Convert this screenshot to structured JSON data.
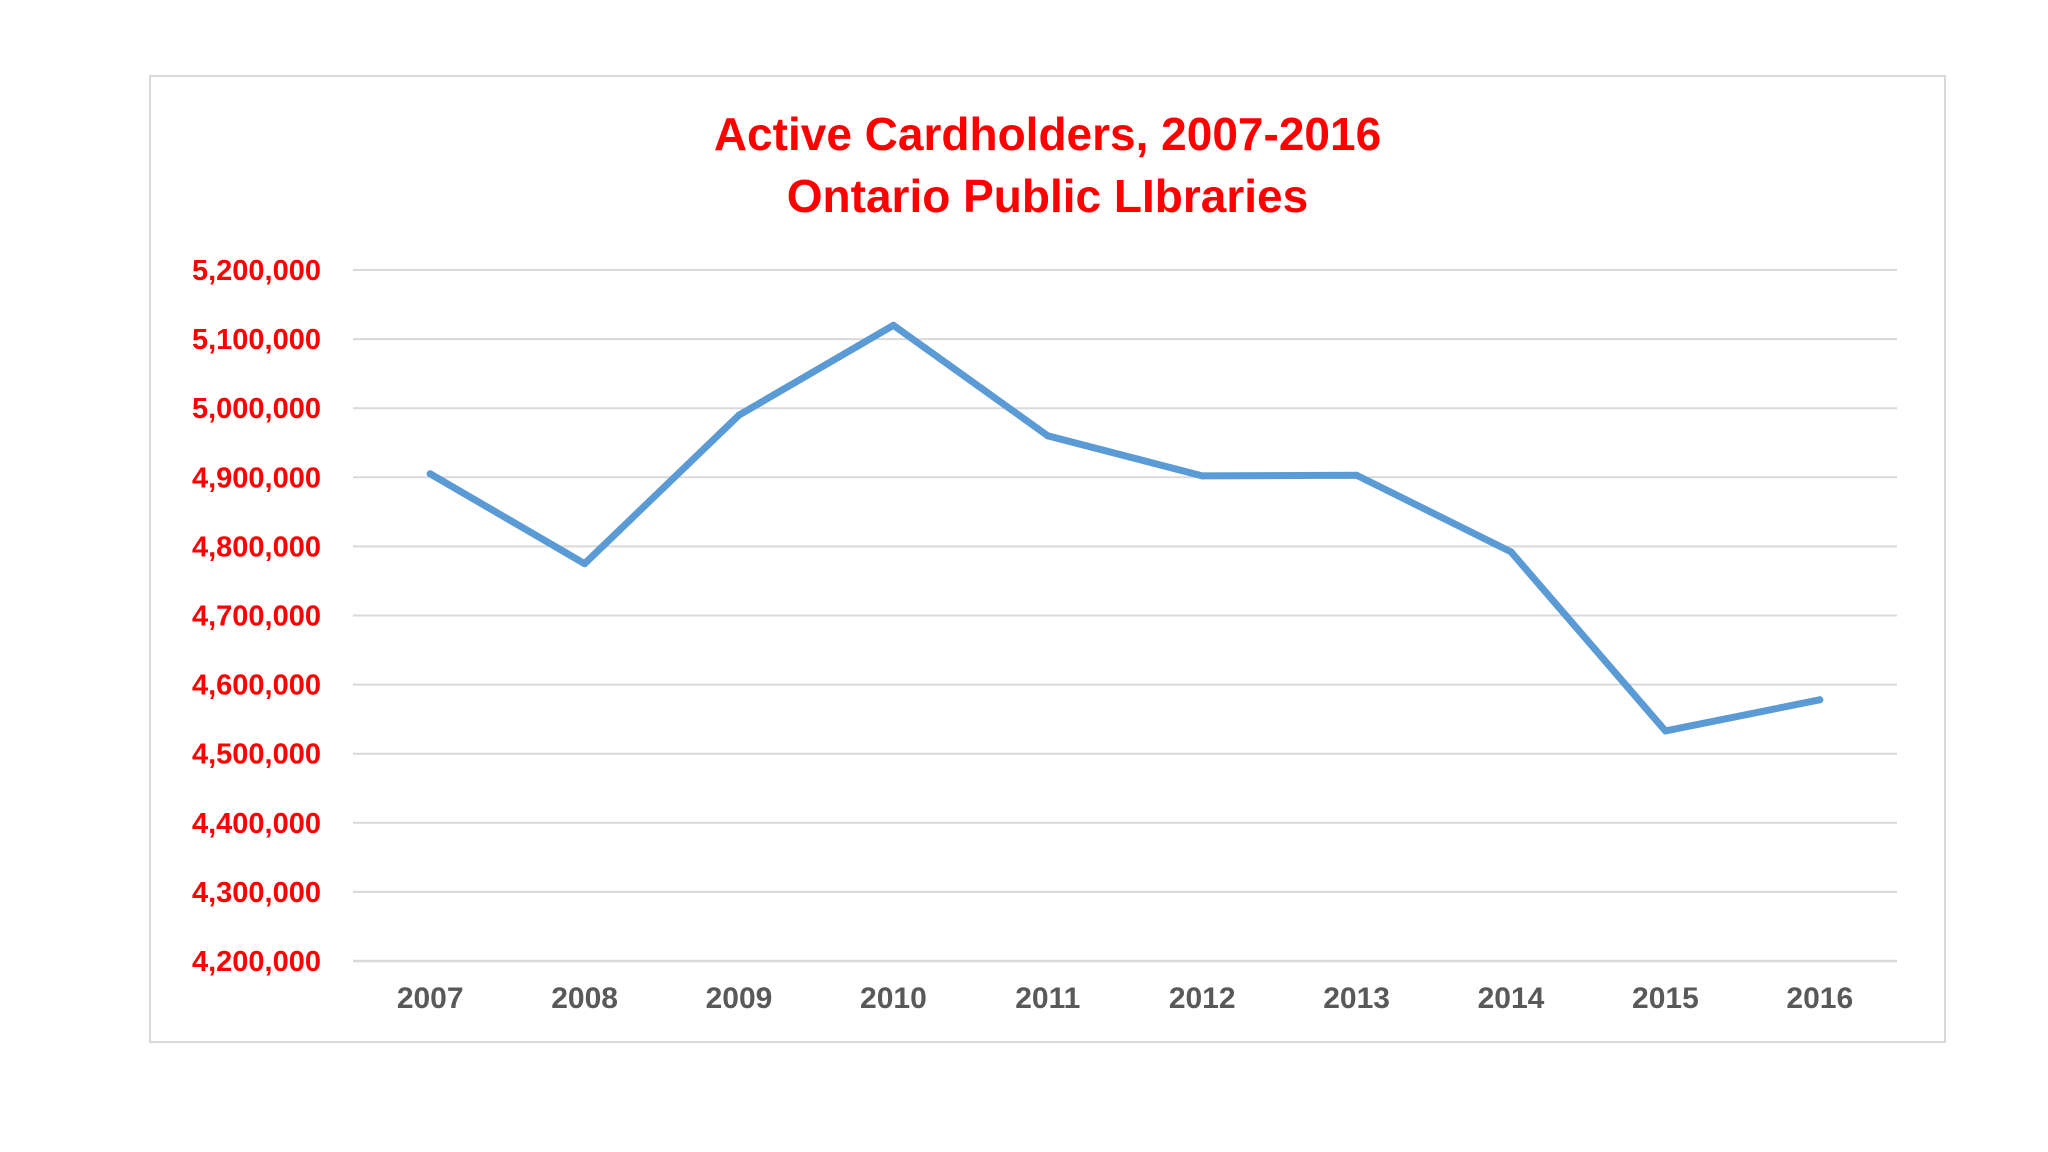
{
  "chart_data": {
    "type": "line",
    "title": "Active Cardholders, 2007-2016",
    "subtitle": "Ontario Public LIbraries",
    "xlabel": "",
    "ylabel": "",
    "categories": [
      "2007",
      "2008",
      "2009",
      "2010",
      "2011",
      "2012",
      "2013",
      "2014",
      "2015",
      "2016"
    ],
    "series": [
      {
        "values": [
          4905000,
          4775000,
          4990000,
          5120000,
          4960000,
          4902000,
          4903000,
          4792000,
          4533000,
          4578000
        ],
        "color": "#5b9bd5"
      }
    ],
    "ylim": [
      4200000,
      5200000
    ],
    "yticks": [
      5200000,
      5100000,
      5000000,
      4900000,
      4800000,
      4700000,
      4600000,
      4500000,
      4400000,
      4300000,
      4200000
    ],
    "ytick_labels": [
      "5,200,000",
      "5,100,000",
      "5,000,000",
      "4,900,000",
      "4,800,000",
      "4,700,000",
      "4,600,000",
      "4,500,000",
      "4,400,000",
      "4,300,000",
      "4,200,000"
    ],
    "grid": true,
    "legend": "none",
    "colors": {
      "title": "#ff0000",
      "ytick": "#ff0000",
      "xtick": "#595959",
      "grid": "#d9d9d9",
      "line": "#5b9bd5"
    }
  }
}
